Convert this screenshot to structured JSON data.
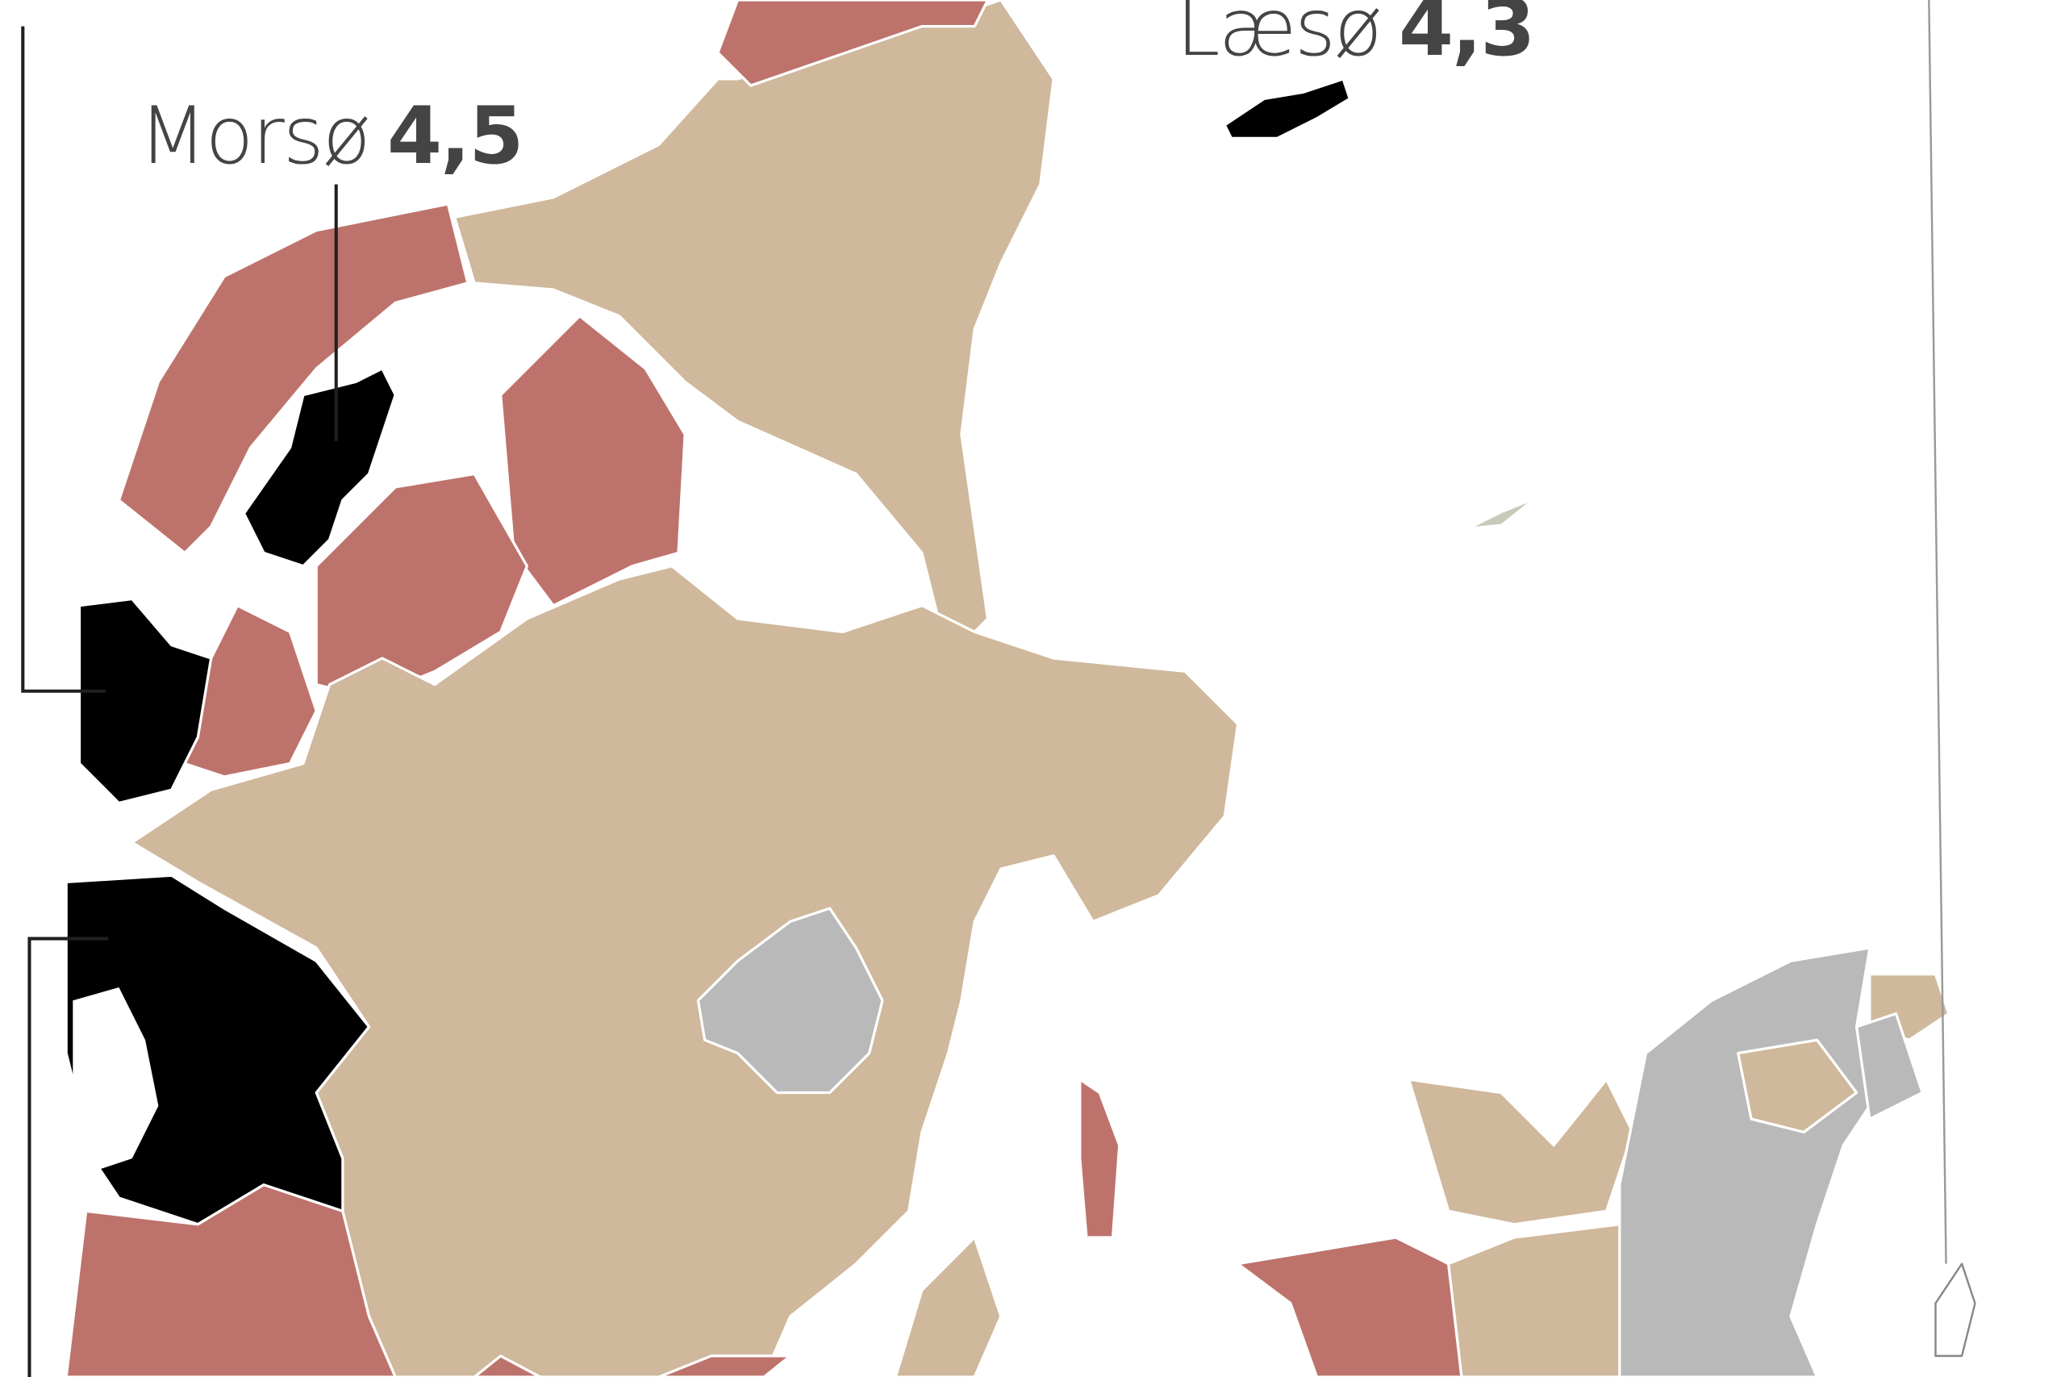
{
  "labels": {
    "morso": {
      "name": "Morsø",
      "value": "4,5"
    },
    "laeso": {
      "name": "Læsø",
      "value": "4,3"
    }
  },
  "colors": {
    "high": "#bd736b",
    "middle": "#cfb89b",
    "highest": "#000000",
    "low": "#b9b9b9",
    "water": "#ffffff",
    "border": "#ffffff",
    "leader_line": "#231f20"
  }
}
